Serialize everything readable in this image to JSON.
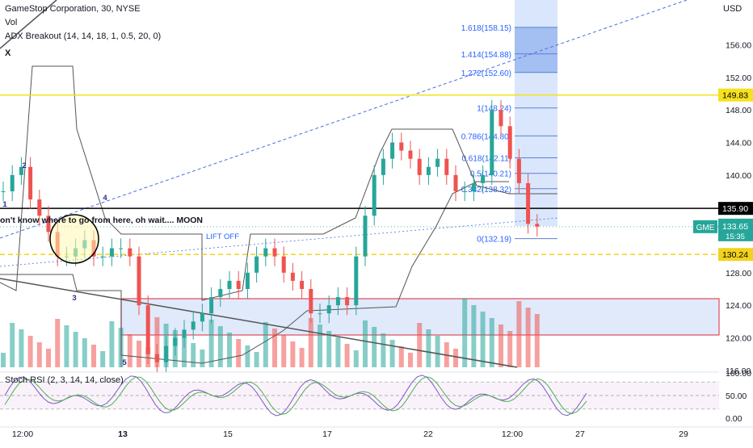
{
  "header": {
    "symbol_line": "GameStop Corporation, 30, NYSE",
    "volume_label": "Vol",
    "adx_label": "ADX Breakout (14, 14, 18, 1, 0.5, 20, 0)",
    "marker_label": "X"
  },
  "stoch": {
    "label": "Stoch RSI (2, 3, 14, 14, close)"
  },
  "price_axis": {
    "currency": "USD",
    "ticks": [
      "156.00",
      "152.00",
      "148.00",
      "144.00",
      "140.00",
      "128.00",
      "124.00",
      "120.00",
      "116.00"
    ]
  },
  "stoch_axis": {
    "ticks": [
      "100.00",
      "50.00",
      "0.00"
    ]
  },
  "time_axis": {
    "labels": [
      "12:00",
      "13",
      "15",
      "17",
      "22",
      "12:00",
      "27",
      "29"
    ]
  },
  "price_tags": {
    "resistance": "149.83",
    "black_line": "135.90",
    "support": "130.24",
    "last_symbol": "GME",
    "last_price": "133.65",
    "countdown": "15:35"
  },
  "annotations": {
    "moon_note": "on't know where to go from here, oh wait.... MOON",
    "lift_off": "LIFT OFF",
    "wave_numbers": [
      "1",
      "2",
      "3",
      "4",
      "5"
    ]
  },
  "fib_labels": [
    "1.618(158.15)",
    "1.414(154.88)",
    "1.272(152.60)",
    "1(148.24)",
    "0.786(144.80)",
    "0.618(142.11)",
    "0.5(140.21)",
    "0.382(138.32)",
    "0(132.19)"
  ],
  "colors": {
    "up": "#26a69a",
    "down": "#ef5350",
    "resistance": "#f5e11e",
    "support": "#f2d21d",
    "fib_box": "#bbd1f7",
    "fib_text": "#2962ff",
    "last_badge": "#26a69a",
    "stoch_k": "#7e57c2",
    "stoch_d": "#4caf50"
  },
  "chart_data": {
    "type": "candlestick",
    "title": "GameStop Corporation, 30, NYSE",
    "ylabel": "USD",
    "ylim": [
      113.6,
      158.3
    ],
    "series": [
      {
        "name": "GME",
        "values": [
          138,
          140,
          141,
          137,
          135,
          133,
          130,
          130,
          131,
          132,
          130,
          130,
          131,
          131,
          130,
          124,
          118,
          117,
          119,
          120,
          121,
          122,
          123,
          125,
          126,
          127,
          126,
          128,
          130,
          131,
          130,
          128,
          127,
          126,
          123,
          123,
          124,
          125,
          124,
          130,
          135,
          140,
          142,
          144,
          143,
          142,
          140,
          141,
          142,
          140,
          138,
          138,
          139,
          140,
          148,
          146,
          142,
          139,
          134,
          133.65
        ]
      }
    ],
    "key_levels": [
      149.83,
      135.9,
      130.24
    ],
    "fib_levels": [
      158.15,
      154.88,
      152.6,
      148.24,
      144.8,
      142.11,
      140.21,
      138.32,
      132.19
    ]
  }
}
